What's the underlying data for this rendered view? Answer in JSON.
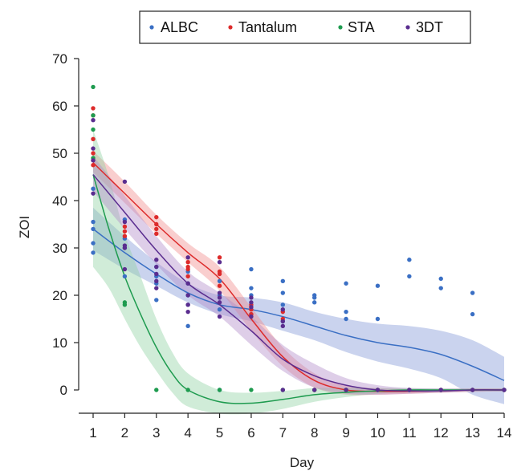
{
  "chart_data": {
    "type": "scatter",
    "title": "",
    "xlabel": "Day",
    "ylabel": "ZOI",
    "xlim": [
      1,
      14
    ],
    "ylim": [
      0,
      70
    ],
    "x_ticks": [
      1,
      2,
      3,
      4,
      5,
      6,
      7,
      8,
      9,
      10,
      11,
      12,
      13,
      14
    ],
    "y_ticks": [
      0,
      10,
      20,
      30,
      40,
      50,
      60,
      70
    ],
    "grid": false,
    "legend": {
      "placement": "top",
      "entries": [
        "ALBC",
        "Tantalum",
        "STA",
        "3DT"
      ]
    },
    "series": [
      {
        "name": "ALBC",
        "color": "#3a6fc4",
        "band_color": "#8096d6",
        "points": [
          [
            1,
            35.5
          ],
          [
            1,
            34
          ],
          [
            1,
            31
          ],
          [
            1,
            29
          ],
          [
            1,
            42.5
          ],
          [
            2,
            30
          ],
          [
            2,
            32
          ],
          [
            2,
            24
          ],
          [
            2,
            36
          ],
          [
            3,
            24
          ],
          [
            3,
            26
          ],
          [
            3,
            19
          ],
          [
            3,
            22.5
          ],
          [
            4,
            20
          ],
          [
            4,
            18
          ],
          [
            4,
            13.5
          ],
          [
            4,
            25
          ],
          [
            4,
            22.5
          ],
          [
            5,
            23
          ],
          [
            5,
            20
          ],
          [
            5,
            17
          ],
          [
            5,
            0
          ],
          [
            6,
            25.5
          ],
          [
            6,
            21.5
          ],
          [
            6,
            20
          ],
          [
            6,
            16
          ],
          [
            7,
            23
          ],
          [
            7,
            20.5
          ],
          [
            7,
            18
          ],
          [
            7,
            14.5
          ],
          [
            8,
            20
          ],
          [
            8,
            19.5
          ],
          [
            8,
            18.5
          ],
          [
            9,
            22.5
          ],
          [
            9,
            16.5
          ],
          [
            9,
            15
          ],
          [
            10,
            22
          ],
          [
            10,
            15
          ],
          [
            11,
            27.5
          ],
          [
            11,
            24
          ],
          [
            12,
            23.5
          ],
          [
            12,
            21.5
          ],
          [
            13,
            20.5
          ],
          [
            13,
            16
          ],
          [
            14,
            0
          ]
        ],
        "fit": [
          [
            1,
            34
          ],
          [
            2,
            29
          ],
          [
            3,
            24.5
          ],
          [
            4,
            20.5
          ],
          [
            5,
            18
          ],
          [
            6,
            17
          ],
          [
            7,
            15.5
          ],
          [
            8,
            13.5
          ],
          [
            9,
            11.5
          ],
          [
            10,
            10
          ],
          [
            11,
            9
          ],
          [
            12,
            7.5
          ],
          [
            13,
            5
          ],
          [
            14,
            2
          ]
        ],
        "ci_lower": [
          [
            1,
            29.5
          ],
          [
            2,
            25.5
          ],
          [
            3,
            22
          ],
          [
            4,
            18.5
          ],
          [
            5,
            16
          ],
          [
            6,
            14.5
          ],
          [
            7,
            12.5
          ],
          [
            8,
            10.5
          ],
          [
            9,
            8
          ],
          [
            10,
            6
          ],
          [
            11,
            4.5
          ],
          [
            12,
            2.5
          ],
          [
            13,
            -1
          ],
          [
            14,
            -3
          ]
        ],
        "ci_upper": [
          [
            1,
            38.5
          ],
          [
            2,
            32.5
          ],
          [
            3,
            27
          ],
          [
            4,
            22.5
          ],
          [
            5,
            20
          ],
          [
            6,
            19.5
          ],
          [
            7,
            18.5
          ],
          [
            8,
            16.5
          ],
          [
            9,
            15
          ],
          [
            10,
            14
          ],
          [
            11,
            13.5
          ],
          [
            12,
            12.5
          ],
          [
            13,
            10.5
          ],
          [
            14,
            7
          ]
        ]
      },
      {
        "name": "Tantalum",
        "color": "#dd2b2b",
        "band_color": "#f08a8a",
        "points": [
          [
            1,
            59.5
          ],
          [
            1,
            58
          ],
          [
            1,
            53
          ],
          [
            1,
            50
          ],
          [
            1,
            48.5
          ],
          [
            1,
            47.5
          ],
          [
            2,
            34.5
          ],
          [
            2,
            33.5
          ],
          [
            2,
            32.5
          ],
          [
            3,
            36.5
          ],
          [
            3,
            35
          ],
          [
            3,
            34
          ],
          [
            3,
            33
          ],
          [
            4,
            27
          ],
          [
            4,
            26
          ],
          [
            4,
            25.5
          ],
          [
            4,
            24
          ],
          [
            5,
            28
          ],
          [
            5,
            25
          ],
          [
            5,
            24.5
          ],
          [
            5,
            22
          ],
          [
            6,
            18
          ],
          [
            6,
            17
          ],
          [
            6,
            16
          ],
          [
            7,
            16.5
          ],
          [
            7,
            15
          ],
          [
            8,
            0
          ],
          [
            9,
            0
          ],
          [
            10,
            0
          ],
          [
            11,
            0
          ],
          [
            12,
            0
          ],
          [
            13,
            0
          ],
          [
            14,
            0
          ]
        ],
        "fit": [
          [
            1,
            48
          ],
          [
            2,
            41.5
          ],
          [
            3,
            35
          ],
          [
            4,
            29
          ],
          [
            5,
            23.5
          ],
          [
            6,
            15
          ],
          [
            7,
            7
          ],
          [
            8,
            2
          ],
          [
            9,
            0
          ],
          [
            10,
            -0.3
          ],
          [
            11,
            -0.3
          ],
          [
            12,
            -0.2
          ],
          [
            13,
            0
          ],
          [
            14,
            0
          ]
        ],
        "ci_lower": [
          [
            1,
            46
          ],
          [
            2,
            39.5
          ],
          [
            3,
            33
          ],
          [
            4,
            27
          ],
          [
            5,
            21
          ],
          [
            6,
            12.5
          ],
          [
            7,
            5
          ],
          [
            8,
            0.5
          ],
          [
            9,
            -1
          ],
          [
            10,
            -1
          ],
          [
            11,
            -0.8
          ],
          [
            12,
            -0.6
          ],
          [
            13,
            -0.4
          ],
          [
            14,
            -0.3
          ]
        ],
        "ci_upper": [
          [
            1,
            50.5
          ],
          [
            2,
            44
          ],
          [
            3,
            37
          ],
          [
            4,
            31
          ],
          [
            5,
            26
          ],
          [
            6,
            17.5
          ],
          [
            7,
            9
          ],
          [
            8,
            3.5
          ],
          [
            9,
            1
          ],
          [
            10,
            0.4
          ],
          [
            11,
            0.2
          ],
          [
            12,
            0.2
          ],
          [
            13,
            0.3
          ],
          [
            14,
            0.3
          ]
        ]
      },
      {
        "name": "STA",
        "color": "#1e9b4f",
        "band_color": "#8fd1a3",
        "points": [
          [
            1,
            64
          ],
          [
            1,
            58
          ],
          [
            1,
            55
          ],
          [
            1,
            49
          ],
          [
            2,
            18.5
          ],
          [
            2,
            18
          ],
          [
            3,
            0
          ],
          [
            4,
            0
          ],
          [
            5,
            0
          ],
          [
            6,
            0
          ],
          [
            7,
            0
          ],
          [
            8,
            0
          ],
          [
            9,
            0
          ],
          [
            10,
            0
          ],
          [
            11,
            0
          ],
          [
            12,
            0
          ],
          [
            13,
            0
          ],
          [
            14,
            0
          ]
        ],
        "fit": [
          [
            1,
            45.5
          ],
          [
            1.5,
            34
          ],
          [
            2,
            24
          ],
          [
            2.5,
            16
          ],
          [
            3,
            9
          ],
          [
            3.5,
            3.5
          ],
          [
            4,
            0
          ],
          [
            5,
            -2.5
          ],
          [
            6,
            -2.8
          ],
          [
            7,
            -2
          ],
          [
            8,
            -1
          ],
          [
            9,
            -0.5
          ],
          [
            10,
            -0.2
          ],
          [
            11,
            0
          ],
          [
            12,
            0
          ],
          [
            13,
            0
          ],
          [
            14,
            0
          ]
        ],
        "ci_lower": [
          [
            1,
            26
          ],
          [
            1.5,
            21.5
          ],
          [
            2,
            15
          ],
          [
            2.5,
            9
          ],
          [
            3,
            4
          ],
          [
            3.5,
            -0.5
          ],
          [
            4,
            -3.5
          ],
          [
            5,
            -5
          ],
          [
            6,
            -5
          ],
          [
            7,
            -4
          ],
          [
            8,
            -2.5
          ],
          [
            9,
            -1.5
          ],
          [
            10,
            -0.8
          ],
          [
            11,
            -0.5
          ],
          [
            12,
            -0.4
          ],
          [
            13,
            -0.3
          ],
          [
            14,
            -0.3
          ]
        ],
        "ci_upper": [
          [
            1,
            55
          ],
          [
            1.5,
            45
          ],
          [
            2,
            33
          ],
          [
            2.5,
            24
          ],
          [
            3,
            15
          ],
          [
            3.5,
            8
          ],
          [
            4,
            3.5
          ],
          [
            5,
            0
          ],
          [
            6,
            -0.6
          ],
          [
            7,
            -0.2
          ],
          [
            8,
            0.4
          ],
          [
            9,
            0.5
          ],
          [
            10,
            0.4
          ],
          [
            11,
            0.4
          ],
          [
            12,
            0.3
          ],
          [
            13,
            0.3
          ],
          [
            14,
            0.3
          ]
        ]
      },
      {
        "name": "3DT",
        "color": "#5a2d8f",
        "band_color": "#b08ac9",
        "points": [
          [
            1,
            57
          ],
          [
            1,
            51
          ],
          [
            1,
            48.5
          ],
          [
            1,
            41.5
          ],
          [
            2,
            44
          ],
          [
            2,
            35.5
          ],
          [
            2,
            30
          ],
          [
            2,
            25.5
          ],
          [
            2,
            30.5
          ],
          [
            3,
            27.5
          ],
          [
            3,
            26
          ],
          [
            3,
            24.5
          ],
          [
            3,
            23
          ],
          [
            3,
            21.5
          ],
          [
            4,
            28
          ],
          [
            4,
            22.5
          ],
          [
            4,
            20
          ],
          [
            4,
            18
          ],
          [
            4,
            16.5
          ],
          [
            5,
            27
          ],
          [
            5,
            20.5
          ],
          [
            5,
            19.5
          ],
          [
            5,
            18.5
          ],
          [
            5,
            15.5
          ],
          [
            6,
            19.5
          ],
          [
            6,
            18.5
          ],
          [
            6,
            17.5
          ],
          [
            6,
            15.5
          ],
          [
            7,
            17
          ],
          [
            7,
            14.5
          ],
          [
            7,
            13.5
          ],
          [
            7,
            0
          ],
          [
            8,
            0
          ],
          [
            9,
            0
          ],
          [
            10,
            0
          ],
          [
            11,
            0
          ],
          [
            12,
            0
          ],
          [
            13,
            0
          ],
          [
            14,
            0
          ]
        ],
        "fit": [
          [
            1,
            45.5
          ],
          [
            2,
            37.5
          ],
          [
            3,
            29.5
          ],
          [
            4,
            22.5
          ],
          [
            5,
            18
          ],
          [
            6,
            12.5
          ],
          [
            7,
            6.5
          ],
          [
            8,
            3
          ],
          [
            9,
            1
          ],
          [
            10,
            0
          ],
          [
            11,
            -0.2
          ],
          [
            12,
            -0.2
          ],
          [
            13,
            0
          ],
          [
            14,
            0
          ]
        ],
        "ci_lower": [
          [
            1,
            42
          ],
          [
            2,
            34
          ],
          [
            3,
            26.5
          ],
          [
            4,
            20
          ],
          [
            5,
            15.5
          ],
          [
            6,
            9.5
          ],
          [
            7,
            4
          ],
          [
            8,
            0.5
          ],
          [
            9,
            -0.8
          ],
          [
            10,
            -1
          ],
          [
            11,
            -0.8
          ],
          [
            12,
            -0.6
          ],
          [
            13,
            -0.4
          ],
          [
            14,
            -0.3
          ]
        ],
        "ci_upper": [
          [
            1,
            49.5
          ],
          [
            2,
            41
          ],
          [
            3,
            32.5
          ],
          [
            4,
            25
          ],
          [
            5,
            20.5
          ],
          [
            6,
            15.5
          ],
          [
            7,
            9.5
          ],
          [
            8,
            5.5
          ],
          [
            9,
            2.5
          ],
          [
            10,
            1
          ],
          [
            11,
            0.4
          ],
          [
            12,
            0.3
          ],
          [
            13,
            0.3
          ],
          [
            14,
            0.3
          ]
        ]
      }
    ]
  }
}
